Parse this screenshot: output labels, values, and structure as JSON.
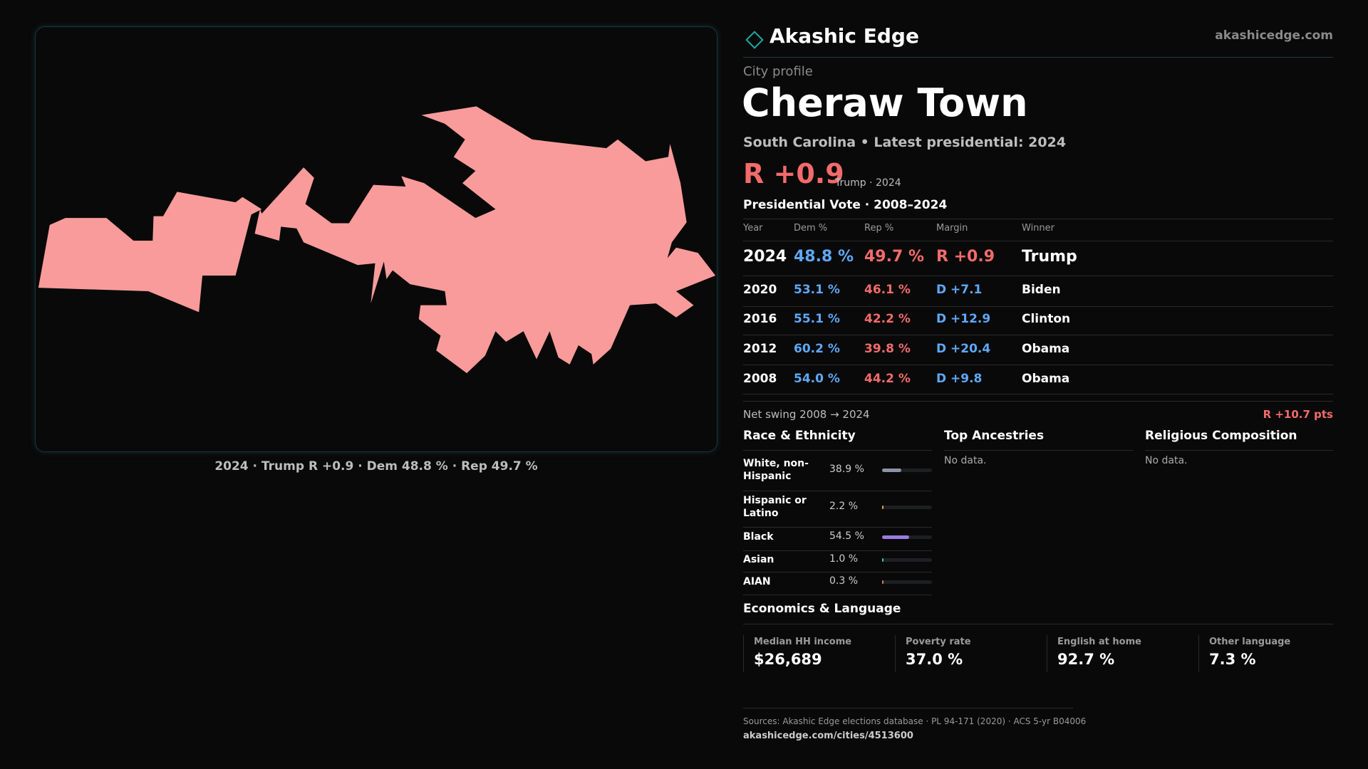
{
  "header": {
    "brand": "Akashic Edge",
    "site": "akashicedge.com"
  },
  "map": {
    "caption": "2024 · Trump R +0.9 · Dem 48.8 % · Rep 49.7 %",
    "fill": "#f99b9b"
  },
  "profile": {
    "kicker": "City profile",
    "title": "Cheraw Town",
    "subtitle": "South Carolina • Latest presidential: 2024",
    "margin": "R +0.9",
    "margin_note": "Trump · 2024"
  },
  "vote": {
    "title": "Presidential Vote · 2008–2024",
    "columns": [
      "Year",
      "Dem %",
      "Rep %",
      "Margin",
      "Winner"
    ],
    "rows": [
      [
        "2024",
        "48.8 %",
        "49.7 %",
        "R +0.9",
        "Trump"
      ],
      [
        "2020",
        "53.1 %",
        "46.1 %",
        "D +7.1",
        "Biden"
      ],
      [
        "2016",
        "55.1 %",
        "42.2 %",
        "D +12.9",
        "Clinton"
      ],
      [
        "2012",
        "60.2 %",
        "39.8 %",
        "D +20.4",
        "Obama"
      ],
      [
        "2008",
        "54.0 %",
        "44.2 %",
        "D +9.8",
        "Obama"
      ]
    ],
    "swing_label": "Net swing 2008 → 2024",
    "swing": "R +10.7 pts"
  },
  "race": {
    "title": "Race & Ethnicity",
    "xlim": [
      0,
      100
    ],
    "rows": [
      {
        "name": "White, non-Hispanic",
        "value": 38.9,
        "label": "38.9 %",
        "color": "#8a94a6"
      },
      {
        "name": "Hispanic or Latino",
        "value": 2.2,
        "label": "2.2 %",
        "color": "#e8a33c"
      },
      {
        "name": "Black",
        "value": 54.5,
        "label": "54.5 %",
        "color": "#9b7be0"
      },
      {
        "name": "Asian",
        "value": 1.0,
        "label": "1.0 %",
        "color": "#3cc0b0"
      },
      {
        "name": "AIAN",
        "value": 0.3,
        "label": "0.3 %",
        "color": "#d9824a"
      }
    ]
  },
  "ancestry": {
    "title": "Top Ancestries",
    "note": "No data."
  },
  "religion": {
    "title": "Religious Composition",
    "note": "No data."
  },
  "economics": {
    "title": "Economics & Language",
    "stats": [
      {
        "label": "Median HH income",
        "value": "$26,689"
      },
      {
        "label": "Poverty rate",
        "value": "37.0 %"
      },
      {
        "label": "English at home",
        "value": "92.7 %"
      },
      {
        "label": "Other language",
        "value": "7.3 %"
      }
    ]
  },
  "footer": {
    "sources": "Sources: Akashic Edge elections database · PL 94-171 (2020) · ACS 5-yr B04006",
    "url": "akashicedge.com/cities/4513600"
  }
}
